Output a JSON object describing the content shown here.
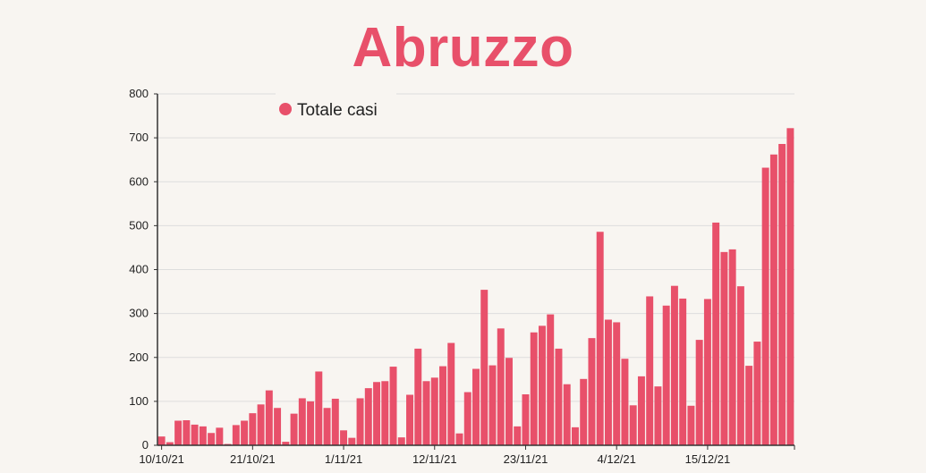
{
  "title": "Abruzzo",
  "colors": {
    "bar": "#e8506a",
    "title": "#e8506a",
    "grid": "#dddddd",
    "axis": "#333333",
    "background": "#f8f5f1"
  },
  "chart_data": {
    "type": "bar",
    "title": "Abruzzo",
    "xlabel": "",
    "ylabel": "",
    "ylim": [
      0,
      800
    ],
    "yticks": [
      0,
      100,
      200,
      300,
      400,
      500,
      600,
      700,
      800
    ],
    "grid": true,
    "legend_position": "top-left",
    "x_tick_labels": [
      {
        "index": 0,
        "label": "10/10/21"
      },
      {
        "index": 11,
        "label": "21/10/21"
      },
      {
        "index": 22,
        "label": "1/11/21"
      },
      {
        "index": 33,
        "label": "12/11/21"
      },
      {
        "index": 44,
        "label": "23/11/21"
      },
      {
        "index": 55,
        "label": "4/12/21"
      },
      {
        "index": 66,
        "label": "15/12/21"
      }
    ],
    "series": [
      {
        "name": "Totale casi",
        "values": [
          20,
          7,
          56,
          57,
          47,
          43,
          28,
          40,
          3,
          46,
          56,
          73,
          93,
          125,
          85,
          8,
          72,
          107,
          100,
          168,
          85,
          106,
          34,
          17,
          107,
          130,
          144,
          146,
          179,
          18,
          115,
          220,
          146,
          154,
          180,
          233,
          27,
          121,
          174,
          354,
          182,
          266,
          199,
          43,
          116,
          257,
          272,
          298,
          220,
          139,
          41,
          151,
          244,
          486,
          286,
          280,
          197,
          91,
          157,
          339,
          134,
          318,
          363,
          334,
          90,
          240,
          333,
          507,
          440,
          446,
          362,
          181,
          236,
          632,
          662,
          686,
          722
        ]
      }
    ]
  }
}
